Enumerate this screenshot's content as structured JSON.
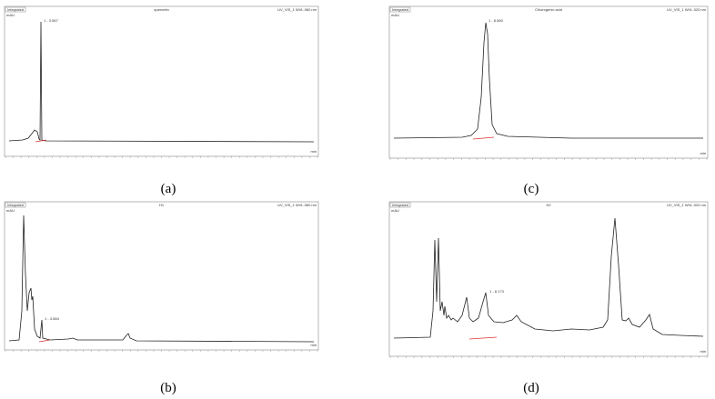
{
  "panels": [
    {
      "label": "(a)",
      "header": "Integrated",
      "title": "quercetin",
      "channel": "UV_VIS_1 WVL:360 nm",
      "y_unit": "mAU",
      "x_unit": "min",
      "peak": "1 - 3.567"
    },
    {
      "label": "(b)",
      "header": "Integrated",
      "title": "H1",
      "channel": "UV_VIS_1 WVL:360 nm",
      "y_unit": "mAU",
      "x_unit": "min",
      "peak": "1 - 3.584"
    },
    {
      "label": "(c)",
      "header": "Integrated",
      "title": "Chlorogenic acid",
      "channel": "UV_VIS_1 WVL:320 nm",
      "y_unit": "mAU",
      "x_unit": "min",
      "peak": "1 - 8.560"
    },
    {
      "label": "(d)",
      "header": "Integrated",
      "title": "H2",
      "channel": "UV_VIS_1 WVL:320 nm",
      "y_unit": "mAU",
      "x_unit": "min",
      "peak": "1 - 8.173"
    }
  ]
}
